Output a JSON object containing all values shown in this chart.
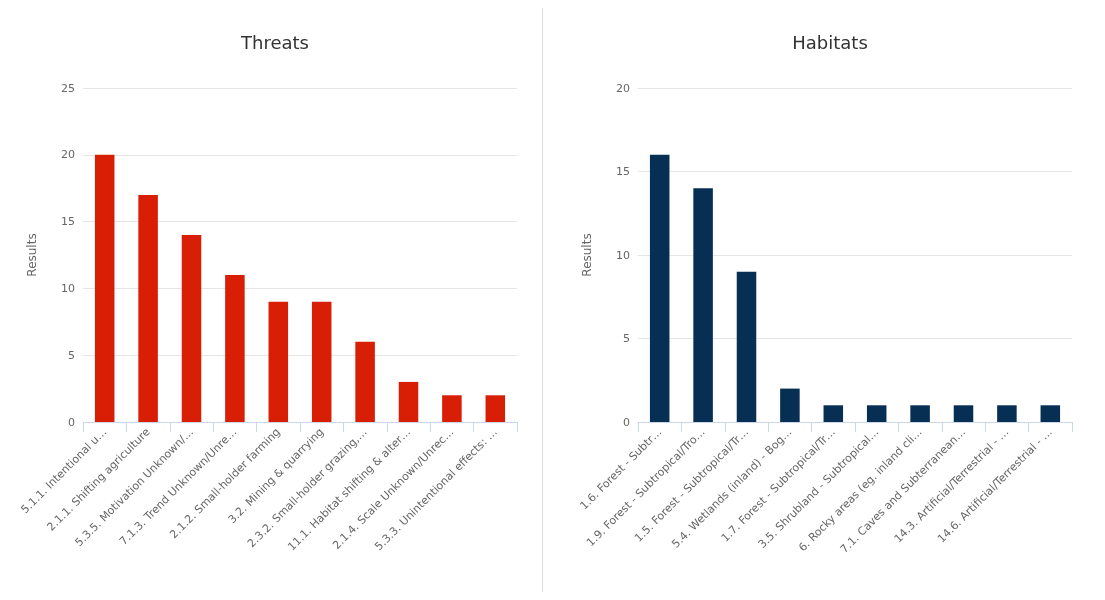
{
  "chart_data": [
    {
      "type": "bar",
      "title": "Threats",
      "ylabel": "Results",
      "categories": [
        "5.1.1. Intentional u…",
        "2.1.1. Shifting agriculture",
        "5.3.5. Motivation Unknown/…",
        "7.1.3. Trend Unknown/Unre…",
        "2.1.2. Small-holder farming",
        "3.2. Mining & quarrying",
        "2.3.2. Small-holder grazing,…",
        "11.1. Habitat shifting & alter…",
        "2.1.4. Scale Unknown/Unrec…",
        "5.3.3. Unintentional effects: …"
      ],
      "series": [
        {
          "color": "#d91e06",
          "values": [
            20,
            17,
            14,
            11,
            9,
            9,
            6,
            3,
            2,
            2
          ]
        }
      ],
      "ylim": [
        0,
        25
      ],
      "yticks": [
        0,
        5,
        10,
        15,
        20,
        25
      ],
      "grid": "y"
    },
    {
      "type": "bar",
      "title": "Habitats",
      "ylabel": "Results",
      "categories": [
        "1.6. Forest - Subtr…",
        "1.9. Forest - Subtropical/Tro…",
        "1.5. Forest - Subtropical/Tr…",
        "5.4. Wetlands (inland) - Bog…",
        "1.7. Forest - Subtropical/Tr…",
        "3.5. Shrubland - Subtropical…",
        "6. Rocky areas (eg. inland cli…",
        "7.1. Caves and Subterranean…",
        "14.3. Artificial/Terrestrial - …",
        "14.6. Artificial/Terrestrial - …"
      ],
      "series": [
        {
          "color": "#072f54",
          "values": [
            16,
            14,
            9,
            2,
            1,
            1,
            1,
            1,
            1,
            1
          ]
        }
      ],
      "ylim": [
        0,
        20
      ],
      "yticks": [
        0,
        5,
        10,
        15,
        20
      ],
      "grid": "y"
    }
  ]
}
